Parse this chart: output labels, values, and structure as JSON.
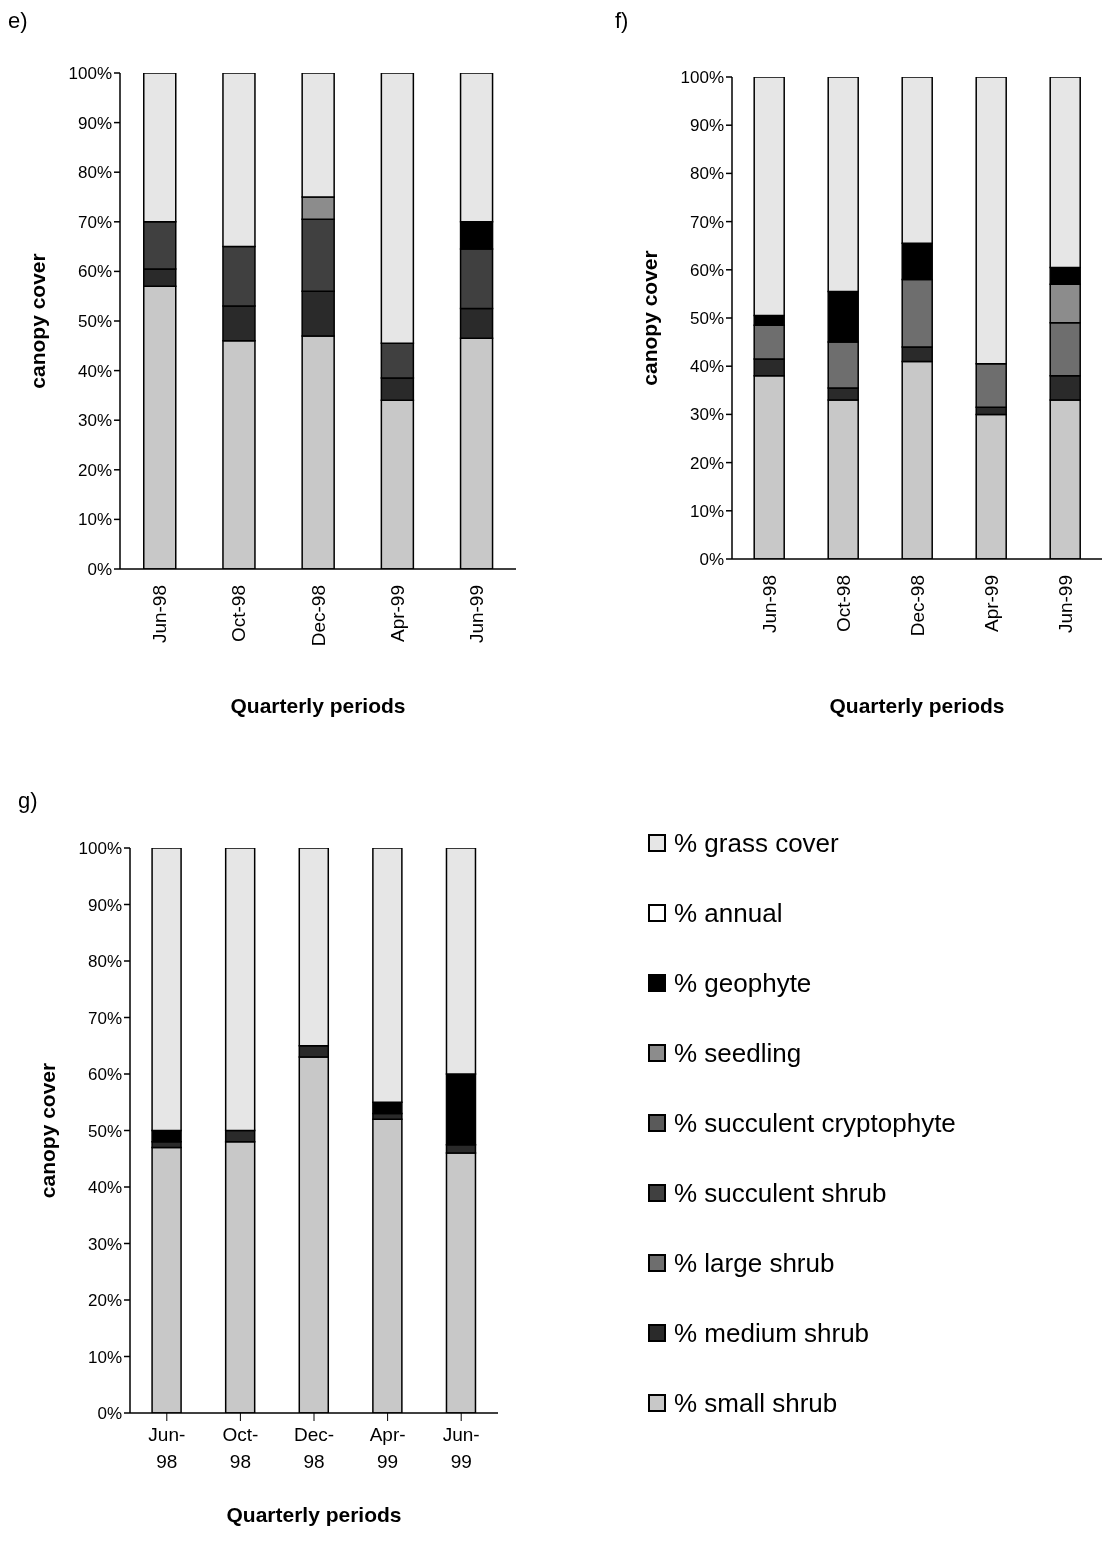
{
  "chart_data": [
    {
      "type": "bar",
      "title": "e)",
      "xlabel": "Quarterly periods",
      "ylabel": "canopy cover",
      "categories": [
        "Jun-98",
        "Oct-98",
        "Dec-98",
        "Apr-99",
        "Jun-99"
      ],
      "stacked": true,
      "ylim": [
        0,
        100
      ],
      "yticks": [
        {
          "value": 0,
          "label": "0%"
        },
        {
          "value": 10,
          "label": "10%"
        },
        {
          "value": 20,
          "label": "20%"
        },
        {
          "value": 30,
          "label": "30%"
        },
        {
          "value": 40,
          "label": "40%"
        },
        {
          "value": 50,
          "label": "50%"
        },
        {
          "value": 60,
          "label": "60%"
        },
        {
          "value": 70,
          "label": "70%"
        },
        {
          "value": 80,
          "label": "80%"
        },
        {
          "value": 90,
          "label": "90%"
        },
        {
          "value": 100,
          "label": "100%"
        }
      ],
      "series": [
        {
          "color": "#c8c8c8",
          "values": [
            57,
            46,
            47,
            34,
            46.5
          ]
        },
        {
          "color": "#2a2a2a",
          "values": [
            3.5,
            7,
            9,
            4.5,
            6
          ]
        },
        {
          "color": "#404040",
          "values": [
            9.5,
            12,
            14.5,
            7,
            12
          ]
        },
        {
          "color": "#8c8c8c",
          "values": [
            0,
            0,
            4.5,
            0,
            0
          ]
        },
        {
          "color": "#000000",
          "values": [
            0,
            0,
            0,
            0,
            5.5
          ]
        },
        {
          "color": "#e6e6e6",
          "values": [
            30,
            35,
            25,
            54.5,
            30
          ]
        }
      ]
    },
    {
      "type": "bar",
      "title": "f)",
      "xlabel": "Quarterly periods",
      "ylabel": "canopy cover",
      "categories": [
        "Jun-98",
        "Oct-98",
        "Dec-98",
        "Apr-99",
        "Jun-99"
      ],
      "stacked": true,
      "ylim": [
        0,
        100
      ],
      "yticks": [
        {
          "value": 0,
          "label": "0%"
        },
        {
          "value": 10,
          "label": "10%"
        },
        {
          "value": 20,
          "label": "20%"
        },
        {
          "value": 30,
          "label": "30%"
        },
        {
          "value": 40,
          "label": "40%"
        },
        {
          "value": 50,
          "label": "50%"
        },
        {
          "value": 60,
          "label": "60%"
        },
        {
          "value": 70,
          "label": "70%"
        },
        {
          "value": 80,
          "label": "80%"
        },
        {
          "value": 90,
          "label": "90%"
        },
        {
          "value": 100,
          "label": "100%"
        }
      ],
      "series": [
        {
          "color": "#c8c8c8",
          "values": [
            38,
            33,
            41,
            30,
            33
          ]
        },
        {
          "color": "#2a2a2a",
          "values": [
            3.5,
            2.5,
            3,
            1.5,
            5
          ]
        },
        {
          "color": "#6e6e6e",
          "values": [
            7,
            9.5,
            14,
            9,
            11
          ]
        },
        {
          "color": "#8c8c8c",
          "values": [
            0,
            0,
            0,
            0,
            8
          ]
        },
        {
          "color": "#000000",
          "values": [
            2,
            10.5,
            7.5,
            0,
            3.5
          ]
        },
        {
          "color": "#e6e6e6",
          "values": [
            49.5,
            44.5,
            34.5,
            59.5,
            39.5
          ]
        }
      ]
    },
    {
      "type": "bar",
      "title": "g)",
      "xlabel": "Quarterly periods",
      "ylabel": "canopy cover",
      "categories": [
        "Jun-98",
        "Oct-98",
        "Dec-98",
        "Apr-99",
        "Jun-99"
      ],
      "stacked": true,
      "legend": "right",
      "ylim": [
        0,
        100
      ],
      "yticks": [
        {
          "value": 0,
          "label": "0%"
        },
        {
          "value": 10,
          "label": "10%"
        },
        {
          "value": 20,
          "label": "20%"
        },
        {
          "value": 30,
          "label": "30%"
        },
        {
          "value": 40,
          "label": "40%"
        },
        {
          "value": 50,
          "label": "50%"
        },
        {
          "value": 60,
          "label": "60%"
        },
        {
          "value": 70,
          "label": "70%"
        },
        {
          "value": 80,
          "label": "80%"
        },
        {
          "value": 90,
          "label": "90%"
        },
        {
          "value": 100,
          "label": "100%"
        }
      ],
      "series": [
        {
          "name": "% small shrub",
          "color": "#c8c8c8",
          "values": [
            47,
            48,
            63,
            52,
            46
          ]
        },
        {
          "name": "% medium shrub",
          "color": "#2a2a2a",
          "values": [
            1,
            2,
            2,
            1,
            1.5
          ]
        },
        {
          "name": "% large shrub",
          "color": "#6e6e6e",
          "values": [
            0,
            0,
            0,
            0,
            0
          ]
        },
        {
          "name": "% succulent shrub",
          "color": "#404040",
          "values": [
            0,
            0,
            0,
            0,
            0
          ]
        },
        {
          "name": "% succulent cryptophyte",
          "color": "#5a5a5a",
          "values": [
            0,
            0,
            0,
            0,
            0
          ]
        },
        {
          "name": "% seedling",
          "color": "#8c8c8c",
          "values": [
            0,
            0,
            0,
            0,
            0
          ]
        },
        {
          "name": "% geophyte",
          "color": "#000000",
          "values": [
            2,
            0,
            0,
            2,
            12.5
          ]
        },
        {
          "name": "% annual",
          "color": "#ffffff",
          "values": [
            0,
            0,
            0,
            0,
            0
          ]
        },
        {
          "name": "% grass cover",
          "color": "#e6e6e6",
          "values": [
            50,
            50,
            35,
            45,
            40
          ]
        }
      ]
    }
  ]
}
